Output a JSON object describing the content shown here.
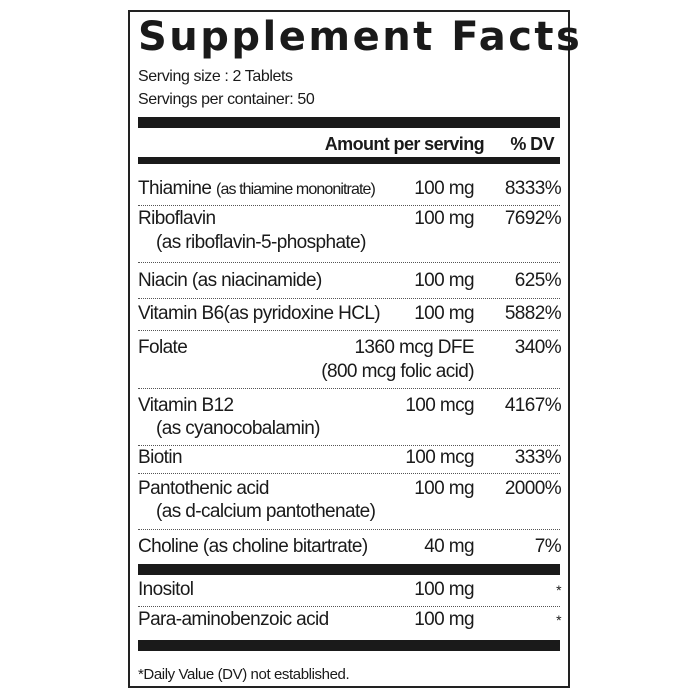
{
  "title": "Supplement Facts",
  "serving_size": "Serving size : 2 Tablets",
  "servings_per_container": "Servings per container: 50",
  "header": {
    "amount": "Amount per serving",
    "dv": "% DV"
  },
  "rows": [
    {
      "name": "Thiamine",
      "sub": "(as thiamine mononitrate)",
      "amount": "100 mg",
      "dv": "8333%"
    },
    {
      "name": "Riboflavin",
      "line2": "(as riboflavin-5-phosphate)",
      "amount": "100 mg",
      "dv": "7692%"
    },
    {
      "name": "Niacin (as niacinamide)",
      "amount": "100 mg",
      "dv": "625%"
    },
    {
      "name": "Vitamin B6(as pyridoxine HCL)",
      "amount": "100 mg",
      "dv": "5882%"
    },
    {
      "name": "Folate",
      "amount": "1360 mcg DFE",
      "amount2": "(800 mcg folic acid)",
      "dv": "340%"
    },
    {
      "name": "Vitamin B12",
      "line2": "(as cyanocobalamin)",
      "amount": "100 mcg",
      "dv": "4167%"
    },
    {
      "name": "Biotin",
      "amount": "100 mcg",
      "dv": "333%"
    },
    {
      "name": "Pantothenic acid",
      "line2": "(as d-calcium pantothenate)",
      "amount": "100 mg",
      "dv": "2000%"
    },
    {
      "name": "Choline (as choline bitartrate)",
      "amount": "40 mg",
      "dv": "7%"
    },
    {
      "name": "Inositol",
      "amount": "100 mg",
      "dv": "*"
    },
    {
      "name": "Para-aminobenzoic acid",
      "amount": "100 mg",
      "dv": "*"
    }
  ],
  "footnote": "*Daily Value (DV) not established."
}
